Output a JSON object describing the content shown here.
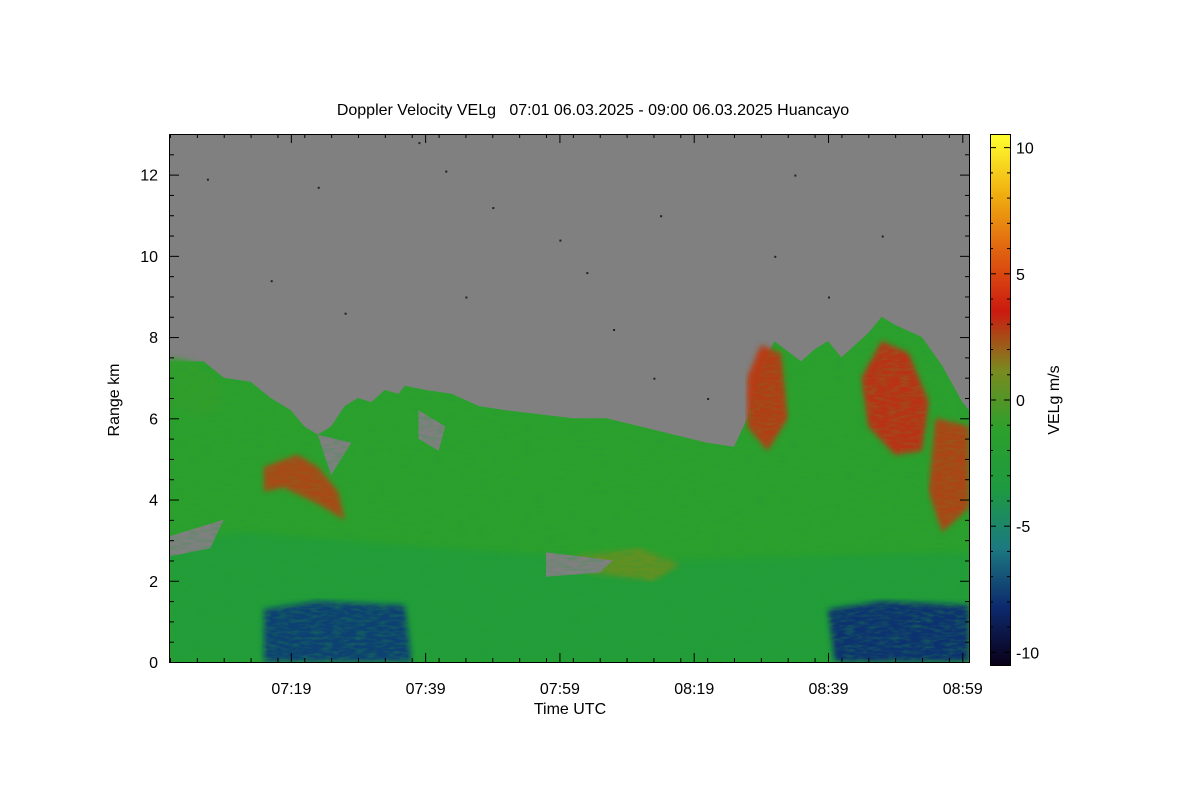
{
  "chart_data": {
    "type": "heatmap",
    "title": "Doppler Velocity VELg   07:01 06.03.2025 - 09:00 06.03.2025 Huancayo",
    "xlabel": "Time UTC",
    "ylabel": "Range km",
    "x_ticks": [
      "07:19",
      "07:39",
      "07:59",
      "08:19",
      "08:39",
      "08:59"
    ],
    "x_tick_minutes": [
      18,
      38,
      58,
      78,
      98,
      118
    ],
    "x_range_minutes": [
      0,
      119
    ],
    "y_ticks": [
      0,
      2,
      4,
      6,
      8,
      10,
      12
    ],
    "ylim": [
      0,
      13
    ],
    "colorbar": {
      "label": "VELg m/s",
      "ticks": [
        10,
        5,
        0,
        -5,
        -10
      ],
      "range": [
        -10.5,
        10.5
      ],
      "colors": [
        "#0a0018",
        "#0d2a6e",
        "#1c7a80",
        "#1e9a40",
        "#2ca02c",
        "#7a8a20",
        "#cc1a10",
        "#e06010",
        "#f0b010",
        "#ffff30"
      ]
    },
    "no_data_color": "#808080",
    "echo_top_km": [
      [
        0,
        7.4
      ],
      [
        5,
        7.4
      ],
      [
        8,
        7.0
      ],
      [
        12,
        6.9
      ],
      [
        15,
        6.5
      ],
      [
        18,
        6.2
      ],
      [
        20,
        5.8
      ],
      [
        22,
        5.6
      ],
      [
        24,
        5.8
      ],
      [
        26,
        6.3
      ],
      [
        28,
        6.5
      ],
      [
        30,
        6.4
      ],
      [
        32,
        6.7
      ],
      [
        34,
        6.6
      ],
      [
        35,
        6.8
      ],
      [
        38,
        6.7
      ],
      [
        42,
        6.6
      ],
      [
        46,
        6.3
      ],
      [
        50,
        6.2
      ],
      [
        55,
        6.1
      ],
      [
        60,
        6.0
      ],
      [
        65,
        6.0
      ],
      [
        70,
        5.8
      ],
      [
        75,
        5.6
      ],
      [
        80,
        5.4
      ],
      [
        84,
        5.3
      ],
      [
        86,
        6.0
      ],
      [
        88,
        7.2
      ],
      [
        90,
        7.9
      ],
      [
        94,
        7.4
      ],
      [
        96,
        7.7
      ],
      [
        98,
        7.9
      ],
      [
        100,
        7.5
      ],
      [
        104,
        8.1
      ],
      [
        106,
        8.5
      ],
      [
        108,
        8.3
      ],
      [
        112,
        8.0
      ],
      [
        115,
        7.3
      ],
      [
        118,
        6.4
      ],
      [
        119,
        6.2
      ]
    ],
    "regions": [
      {
        "name": "upper-left-layer",
        "velocity": -1.0,
        "points": [
          [
            0,
            7.5
          ],
          [
            3,
            7.4
          ],
          [
            7,
            7.0
          ],
          [
            8,
            6.4
          ],
          [
            5,
            6.0
          ],
          [
            1,
            6.2
          ],
          [
            0,
            6.4
          ]
        ]
      },
      {
        "name": "low-level-wind",
        "velocity": -2.5,
        "points": [
          [
            0,
            0
          ],
          [
            119,
            0
          ],
          [
            119,
            2.7
          ],
          [
            70,
            2.5
          ],
          [
            40,
            2.8
          ],
          [
            10,
            3.2
          ],
          [
            0,
            2.8
          ]
        ]
      },
      {
        "name": "jet-left",
        "velocity": -7.5,
        "points": [
          [
            14,
            0
          ],
          [
            36,
            0
          ],
          [
            35,
            1.4
          ],
          [
            22,
            1.5
          ],
          [
            14,
            1.3
          ]
        ]
      },
      {
        "name": "jet-right",
        "velocity": -8.0,
        "points": [
          [
            99,
            0
          ],
          [
            119,
            0
          ],
          [
            119,
            1.4
          ],
          [
            106,
            1.5
          ],
          [
            98,
            1.3
          ]
        ]
      },
      {
        "name": "updraft-left",
        "velocity": 2.5,
        "points": [
          [
            14,
            4.8
          ],
          [
            19,
            5.1
          ],
          [
            22,
            4.8
          ],
          [
            25,
            4.2
          ],
          [
            26,
            3.5
          ],
          [
            22,
            3.9
          ],
          [
            17,
            4.3
          ],
          [
            14,
            4.2
          ]
        ]
      },
      {
        "name": "updraft-right-1",
        "velocity": 2.8,
        "points": [
          [
            86,
            7.0
          ],
          [
            88,
            7.8
          ],
          [
            91,
            7.6
          ],
          [
            92,
            6.0
          ],
          [
            89,
            5.2
          ],
          [
            86,
            5.8
          ]
        ]
      },
      {
        "name": "updraft-right-2",
        "velocity": 3.0,
        "points": [
          [
            103,
            7.0
          ],
          [
            106,
            7.9
          ],
          [
            110,
            7.6
          ],
          [
            113,
            6.4
          ],
          [
            112,
            5.2
          ],
          [
            108,
            5.1
          ],
          [
            104,
            5.8
          ]
        ]
      },
      {
        "name": "updraft-right-3",
        "velocity": 2.6,
        "points": [
          [
            114,
            6.0
          ],
          [
            119,
            5.8
          ],
          [
            119,
            3.8
          ],
          [
            115,
            3.2
          ],
          [
            113,
            4.2
          ]
        ]
      },
      {
        "name": "midlevel-warm",
        "velocity": 0.5,
        "points": [
          [
            60,
            2.6
          ],
          [
            70,
            2.8
          ],
          [
            76,
            2.4
          ],
          [
            72,
            2.0
          ],
          [
            62,
            2.2
          ]
        ]
      }
    ],
    "data_gaps": [
      {
        "points": [
          [
            10,
            7.4
          ],
          [
            16,
            7.5
          ],
          [
            22,
            7.2
          ],
          [
            15,
            7.0
          ]
        ]
      },
      {
        "points": [
          [
            22,
            5.6
          ],
          [
            27,
            5.4
          ],
          [
            24,
            4.6
          ]
        ]
      },
      {
        "points": [
          [
            37,
            6.2
          ],
          [
            41,
            5.8
          ],
          [
            40,
            5.2
          ],
          [
            37,
            5.5
          ]
        ]
      },
      {
        "points": [
          [
            56,
            2.7
          ],
          [
            66,
            2.5
          ],
          [
            64,
            2.2
          ],
          [
            56,
            2.1
          ]
        ]
      },
      {
        "points": [
          [
            0,
            3.1
          ],
          [
            8,
            3.5
          ],
          [
            6,
            2.8
          ],
          [
            0,
            2.6
          ]
        ]
      }
    ],
    "outlier_dots": [
      [
        5.5,
        11.9
      ],
      [
        22,
        11.7
      ],
      [
        26,
        8.6
      ],
      [
        41,
        12.1
      ],
      [
        58,
        10.4
      ],
      [
        66,
        8.2
      ],
      [
        72,
        7.0
      ],
      [
        90,
        10.0
      ],
      [
        93,
        12.0
      ],
      [
        106,
        10.5
      ],
      [
        80,
        6.5
      ],
      [
        73,
        11.0
      ],
      [
        44,
        9.0
      ],
      [
        37,
        12.8
      ],
      [
        48,
        11.2
      ],
      [
        62,
        9.6
      ],
      [
        15,
        9.4
      ],
      [
        98,
        9.0
      ]
    ]
  }
}
